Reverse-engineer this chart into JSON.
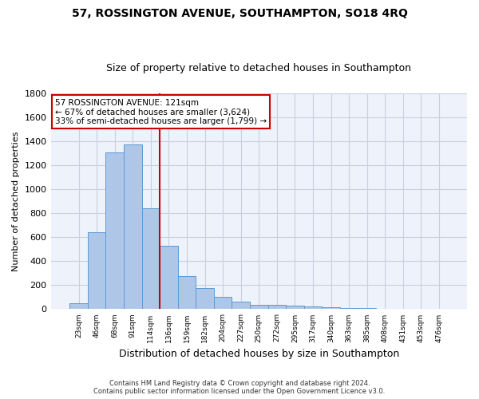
{
  "title": "57, ROSSINGTON AVENUE, SOUTHAMPTON, SO18 4RQ",
  "subtitle": "Size of property relative to detached houses in Southampton",
  "xlabel": "Distribution of detached houses by size in Southampton",
  "ylabel": "Number of detached properties",
  "categories": [
    "23sqm",
    "46sqm",
    "68sqm",
    "91sqm",
    "114sqm",
    "136sqm",
    "159sqm",
    "182sqm",
    "204sqm",
    "227sqm",
    "250sqm",
    "272sqm",
    "295sqm",
    "317sqm",
    "340sqm",
    "363sqm",
    "385sqm",
    "408sqm",
    "431sqm",
    "453sqm",
    "476sqm"
  ],
  "values": [
    50,
    638,
    1307,
    1370,
    843,
    525,
    273,
    175,
    105,
    65,
    37,
    37,
    30,
    22,
    15,
    8,
    8,
    5,
    3,
    2,
    0
  ],
  "bar_color": "#aec6e8",
  "bar_edge_color": "#5b9bd5",
  "vline_index": 4,
  "vline_color": "#cc0000",
  "ylim": [
    0,
    1800
  ],
  "yticks": [
    0,
    200,
    400,
    600,
    800,
    1000,
    1200,
    1400,
    1600,
    1800
  ],
  "annotation_line1": "57 ROSSINGTON AVENUE: 121sqm",
  "annotation_line2": "← 67% of detached houses are smaller (3,624)",
  "annotation_line3": "33% of semi-detached houses are larger (1,799) →",
  "annotation_box_color": "#cc0000",
  "footer_line1": "Contains HM Land Registry data © Crown copyright and database right 2024.",
  "footer_line2": "Contains public sector information licensed under the Open Government Licence v3.0.",
  "bg_color": "#eef2fa",
  "grid_color": "#c8d0e0",
  "title_fontsize": 10,
  "subtitle_fontsize": 9
}
